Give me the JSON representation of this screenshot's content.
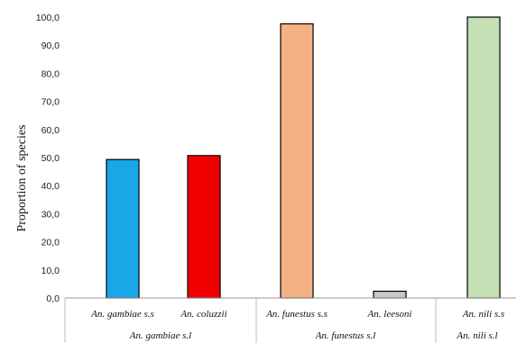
{
  "chart_data": {
    "type": "bar",
    "ylabel": "Proportion of species",
    "ylim": [
      0,
      100
    ],
    "yticks": [
      "0,0",
      "10,0",
      "20,0",
      "30,0",
      "40,0",
      "50,0",
      "60,0",
      "70,0",
      "80,0",
      "90,0",
      "100,0"
    ],
    "categories": [
      "An. gambiae s.s",
      "An. coluzzii",
      "An. funestus s.s",
      "An. leesoni",
      "An. nili s.s"
    ],
    "values": [
      49.3,
      50.7,
      97.6,
      2.4,
      100.0
    ],
    "colors": [
      "#1aa7e8",
      "#f20000",
      "#f4b183",
      "#c8c8c8",
      "#c5e0b4"
    ],
    "groups": [
      {
        "label": "An. gambiae s.l",
        "members": [
          0,
          1
        ]
      },
      {
        "label": "An. funestus s.l",
        "members": [
          2,
          3
        ]
      },
      {
        "label": "An. nili s.l",
        "members": [
          4
        ]
      }
    ],
    "grid": false
  }
}
